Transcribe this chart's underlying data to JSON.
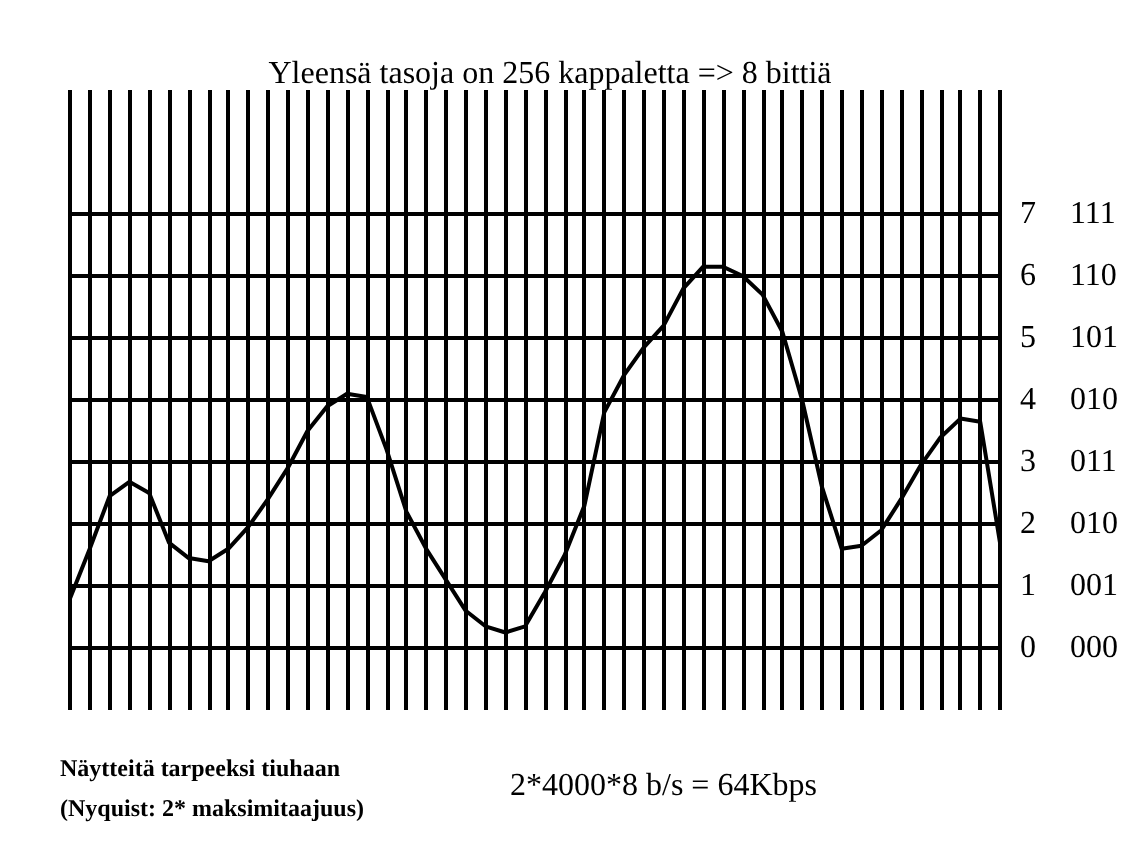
{
  "chart_data": {
    "type": "line",
    "title": "Yleensä tasoja on 256 kappaletta => 8 bittiä",
    "categories": [
      null,
      null,
      null,
      null,
      null,
      null,
      null,
      null,
      null,
      null,
      null,
      null,
      null,
      null,
      null,
      null,
      null,
      null,
      null,
      null,
      null,
      null,
      null,
      null,
      null,
      null,
      null,
      null,
      null,
      null,
      null,
      null,
      null,
      null,
      null,
      null,
      null,
      null,
      null,
      null,
      null,
      null,
      null,
      null,
      null,
      null,
      null,
      null
    ],
    "series": [
      {
        "color": "#000000",
        "values": [
          0.8,
          1.6,
          2.45,
          2.68,
          2.5,
          1.7,
          1.45,
          1.4,
          1.6,
          1.95,
          2.4,
          2.9,
          3.5,
          3.9,
          4.1,
          4.05,
          3.2,
          2.2,
          1.6,
          1.1,
          0.6,
          0.35,
          0.25,
          0.35,
          0.9,
          1.5,
          2.3,
          3.8,
          4.4,
          4.85,
          5.2,
          5.8,
          6.15,
          6.15,
          6.0,
          5.7,
          5.1,
          4.0,
          2.6,
          1.6,
          1.65,
          1.9,
          2.4,
          2.95,
          3.4,
          3.7,
          3.65,
          1.7
        ]
      }
    ],
    "ylim": [
      -1,
      9
    ],
    "yticks": [
      0,
      1,
      2,
      3,
      4,
      5,
      6,
      7
    ],
    "annotations": [
      "Näytteitä tarpeeksi tiuhaan",
      "(Nyquist: 2* maksimitaajuus)",
      "2*4000*8 b/s = 64Kbps",
      "000",
      "001",
      "010",
      "011",
      "010",
      "101",
      "110",
      "111"
    ],
    "grid": true,
    "tick_labels": "y",
    "marker": "none",
    "line_style": "solid"
  }
}
